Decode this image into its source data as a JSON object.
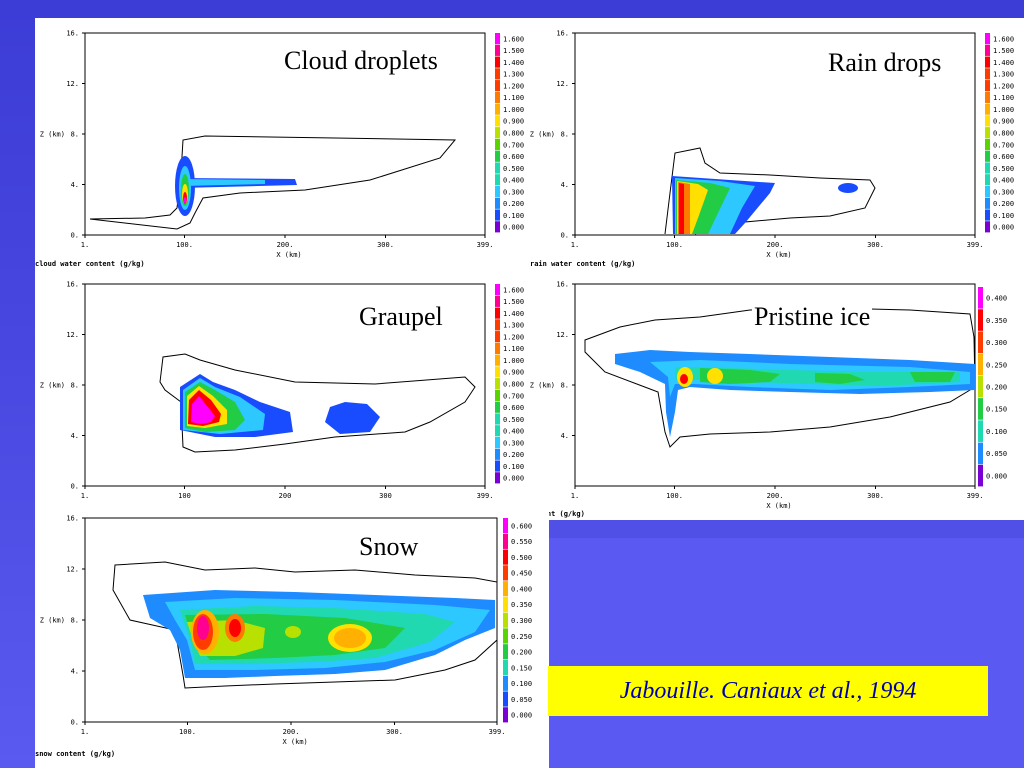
{
  "colors": {
    "scale": [
      "#7a00d6",
      "#1a4cff",
      "#1e8cff",
      "#2cc8ff",
      "#20d9b0",
      "#22cc44",
      "#5ad400",
      "#b8e000",
      "#ffe000",
      "#ffb000",
      "#ff7a00",
      "#ff3c00",
      "#ff0000",
      "#ff0090",
      "#ff00ff"
    ]
  },
  "citation": "Jabouille. Caniaux et al., 1994",
  "chart_data": [
    {
      "type": "heatmap",
      "title": "Cloud droplets",
      "xlabel": "X (km)",
      "ylabel": "Z (km)",
      "caption": "cloud water content (g/kg)",
      "xticks": [
        "1.",
        "100.",
        "200.",
        "300.",
        "399."
      ],
      "yticks": [
        "0.",
        "4.",
        "8.",
        "12.",
        "16."
      ],
      "xlim": [
        1,
        399
      ],
      "ylim": [
        0,
        16
      ],
      "legend": [
        "1.600",
        "1.500",
        "1.400",
        "1.300",
        "1.200",
        "1.100",
        "1.000",
        "0.900",
        "0.800",
        "0.700",
        "0.600",
        "0.500",
        "0.400",
        "0.300",
        "0.200",
        "0.100",
        "0.000"
      ]
    },
    {
      "type": "heatmap",
      "title": "Rain drops",
      "xlabel": "X (km)",
      "ylabel": "Z (km)",
      "caption": "rain water content (g/kg)",
      "xticks": [
        "1.",
        "100.",
        "200.",
        "300.",
        "399."
      ],
      "yticks": [
        "0.",
        "4.",
        "8.",
        "12.",
        "16."
      ],
      "xlim": [
        1,
        399
      ],
      "ylim": [
        0,
        16
      ],
      "legend": [
        "1.600",
        "1.500",
        "1.400",
        "1.300",
        "1.200",
        "1.100",
        "1.000",
        "0.900",
        "0.800",
        "0.700",
        "0.600",
        "0.500",
        "0.400",
        "0.300",
        "0.200",
        "0.100",
        "0.000"
      ]
    },
    {
      "type": "heatmap",
      "title": "Graupel",
      "xlabel": "",
      "ylabel": "Z (km)",
      "caption": "",
      "xticks": [
        "1.",
        "100",
        "200",
        "300",
        "399."
      ],
      "yticks": [
        "0.",
        "4.",
        "8.",
        "12.",
        "16."
      ],
      "xlim": [
        1,
        399
      ],
      "ylim": [
        0,
        16
      ],
      "legend": [
        "1.600",
        "1.500",
        "1.400",
        "1.300",
        "1.200",
        "1.100",
        "1.000",
        "0.900",
        "0.800",
        "0.700",
        "0.600",
        "0.500",
        "0.400",
        "0.300",
        "0.200",
        "0.100",
        "0.000"
      ]
    },
    {
      "type": "heatmap",
      "title": "Pristine ice",
      "xlabel": "X (km)",
      "ylabel": "Z (km)",
      "caption": "ontent (g/kg)",
      "xticks": [
        "1.",
        "100.",
        "200.",
        "300.",
        "399."
      ],
      "yticks": [
        "4.",
        "8.",
        "12.",
        "16."
      ],
      "xlim": [
        1,
        399
      ],
      "ylim": [
        0,
        16
      ],
      "legend": [
        "0.400",
        "0.350",
        "0.300",
        "0.250",
        "0.200",
        "0.150",
        "0.100",
        "0.050",
        "0.000"
      ]
    },
    {
      "type": "heatmap",
      "title": "Snow",
      "xlabel": "X (km)",
      "ylabel": "Z (km)",
      "caption": "snow content (g/kg)",
      "xticks": [
        "1.",
        "100.",
        "200.",
        "300.",
        "399."
      ],
      "yticks": [
        "0.",
        "4.",
        "8.",
        "12.",
        "16."
      ],
      "xlim": [
        1,
        399
      ],
      "ylim": [
        0,
        16
      ],
      "legend": [
        "0.600",
        "0.550",
        "0.500",
        "0.450",
        "0.400",
        "0.350",
        "0.300",
        "0.250",
        "0.200",
        "0.150",
        "0.100",
        "0.050",
        "0.000"
      ]
    }
  ]
}
